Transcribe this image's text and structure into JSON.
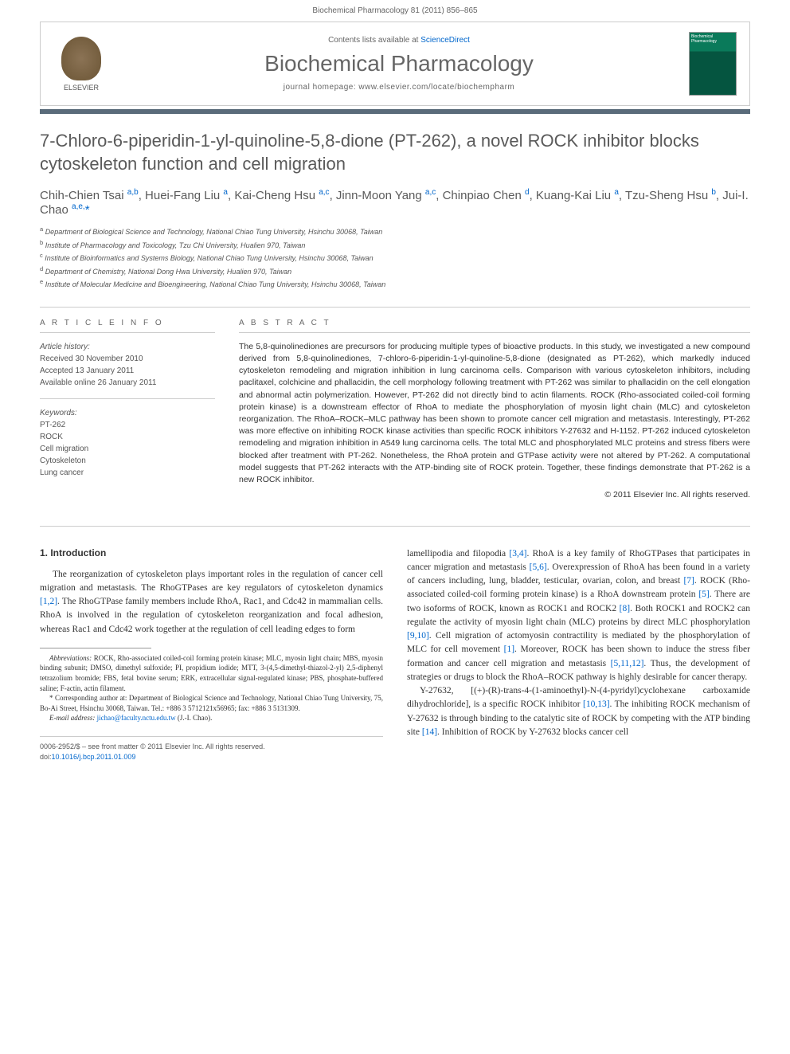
{
  "header": {
    "citation": "Biochemical Pharmacology 81 (2011) 856–865"
  },
  "banner": {
    "contents_prefix": "Contents lists available at ",
    "contents_link": "ScienceDirect",
    "journal_name": "Biochemical Pharmacology",
    "homepage_label": "journal homepage: www.elsevier.com/locate/biochempharm",
    "publisher": "ELSEVIER",
    "cover_label": "Biochemical Pharmacology"
  },
  "title": "7-Chloro-6-piperidin-1-yl-quinoline-5,8-dione (PT-262), a novel ROCK inhibitor blocks cytoskeleton function and cell migration",
  "authors_html": "Chih-Chien Tsai <sup><a>a,b</a></sup>, Huei-Fang Liu <sup><a>a</a></sup>, Kai-Cheng Hsu <sup><a>a,c</a></sup>, Jinn-Moon Yang <sup><a>a,c</a></sup>, Chinpiao Chen <sup><a>d</a></sup>, Kuang-Kai Liu <sup><a>a</a></sup>, Tzu-Sheng Hsu <sup><a>b</a></sup>, Jui-I. Chao <sup><a>a,e,</a></sup><a>*</a>",
  "affiliations": [
    "a Department of Biological Science and Technology, National Chiao Tung University, Hsinchu 30068, Taiwan",
    "b Institute of Pharmacology and Toxicology, Tzu Chi University, Hualien 970, Taiwan",
    "c Institute of Bioinformatics and Systems Biology, National Chiao Tung University, Hsinchu 30068, Taiwan",
    "d Department of Chemistry, National Dong Hwa University, Hualien 970, Taiwan",
    "e Institute of Molecular Medicine and Bioengineering, National Chiao Tung University, Hsinchu 30068, Taiwan"
  ],
  "article_info": {
    "heading": "A R T I C L E  I N F O",
    "history_label": "Article history:",
    "received": "Received 30 November 2010",
    "accepted": "Accepted 13 January 2011",
    "available": "Available online 26 January 2011",
    "keywords_label": "Keywords:",
    "keywords": [
      "PT-262",
      "ROCK",
      "Cell migration",
      "Cytoskeleton",
      "Lung cancer"
    ]
  },
  "abstract": {
    "heading": "A B S T R A C T",
    "text": "The 5,8-quinolinediones are precursors for producing multiple types of bioactive products. In this study, we investigated a new compound derived from 5,8-quinolinediones, 7-chloro-6-piperidin-1-yl-quinoline-5,8-dione (designated as PT-262), which markedly induced cytoskeleton remodeling and migration inhibition in lung carcinoma cells. Comparison with various cytoskeleton inhibitors, including paclitaxel, colchicine and phallacidin, the cell morphology following treatment with PT-262 was similar to phallacidin on the cell elongation and abnormal actin polymerization. However, PT-262 did not directly bind to actin filaments. ROCK (Rho-associated coiled-coil forming protein kinase) is a downstream effector of RhoA to mediate the phosphorylation of myosin light chain (MLC) and cytoskeleton reorganization. The RhoA–ROCK–MLC pathway has been shown to promote cancer cell migration and metastasis. Interestingly, PT-262 was more effective on inhibiting ROCK kinase activities than specific ROCK inhibitors Y-27632 and H-1152. PT-262 induced cytoskeleton remodeling and migration inhibition in A549 lung carcinoma cells. The total MLC and phosphorylated MLC proteins and stress fibers were blocked after treatment with PT-262. Nonetheless, the RhoA protein and GTPase activity were not altered by PT-262. A computational model suggests that PT-262 interacts with the ATP-binding site of ROCK protein. Together, these findings demonstrate that PT-262 is a new ROCK inhibitor.",
    "copyright": "© 2011 Elsevier Inc. All rights reserved."
  },
  "intro": {
    "heading": "1. Introduction",
    "para1_html": "The reorganization of cytoskeleton plays important roles in the regulation of cancer cell migration and metastasis. The RhoGTPases are key regulators of cytoskeleton dynamics <a>[1,2]</a>. The RhoGTPase family members include RhoA, Rac1, and Cdc42 in mammalian cells. RhoA is involved in the regulation of cytoskeleton reorganization and focal adhesion, whereas Rac1 and Cdc42 work together at the regulation of cell leading edges to form",
    "para2_html": "lamellipodia and filopodia <a>[3,4]</a>. RhoA is a key family of RhoGTPases that participates in cancer migration and metastasis <a>[5,6]</a>. Overexpression of RhoA has been found in a variety of cancers including, lung, bladder, testicular, ovarian, colon, and breast <a>[7]</a>. ROCK (Rho-associated coiled-coil forming protein kinase) is a RhoA downstream protein <a>[5]</a>. There are two isoforms of ROCK, known as ROCK1 and ROCK2 <a>[8]</a>. Both ROCK1 and ROCK2 can regulate the activity of myosin light chain (MLC) proteins by direct MLC phosphorylation <a>[9,10]</a>. Cell migration of actomyosin contractility is mediated by the phosphorylation of MLC for cell movement <a>[1]</a>. Moreover, ROCK has been shown to induce the stress fiber formation and cancer cell migration and metastasis <a>[5,11,12]</a>. Thus, the development of strategies or drugs to block the RhoA–ROCK pathway is highly desirable for cancer therapy.",
    "para3_html": "Y-27632, [(+)-(R)-trans-4-(1-aminoethyl)-N-(4-pyridyl)cyclohexane carboxamide dihydrochloride], is a specific ROCK inhibitor <a>[10,13]</a>. The inhibiting ROCK mechanism of Y-27632 is through binding to the catalytic site of ROCK by competing with the ATP binding site <a>[14]</a>. Inhibition of ROCK by Y-27632 blocks cancer cell"
  },
  "footnotes": {
    "abbrev_html": "<em>Abbreviations:</em> ROCK, Rho-associated coiled-coil forming protein kinase; MLC, myosin light chain; MBS, myosin binding subunit; DMSO, dimethyl sulfoxide; PI, propidium iodide; MTT, 3-(4,5-dimethyl-thiazol-2-yl) 2,5-diphenyl tetrazolium bromide; FBS, fetal bovine serum; ERK, extracellular signal-regulated kinase; PBS, phosphate-buffered saline; F-actin, actin filament.",
    "corresponding_html": "* Corresponding author at: Department of Biological Science and Technology, National Chiao Tung University, 75, Bo-Ai Street, Hsinchu 30068, Taiwan. Tel.: +886 3 5712121x56965; fax: +886 3 5131309.",
    "email_html": "<em>E-mail address:</em> <a>jichao@faculty.nctu.edu.tw</a> (J.-I. Chao)."
  },
  "bottom": {
    "line1": "0006-2952/$ – see front matter © 2011 Elsevier Inc. All rights reserved.",
    "doi_prefix": "doi:",
    "doi": "10.1016/j.bcp.2011.01.009"
  },
  "colors": {
    "link": "#0066cc",
    "divider": "#5a6b7a",
    "text": "#333333",
    "muted": "#666666"
  }
}
